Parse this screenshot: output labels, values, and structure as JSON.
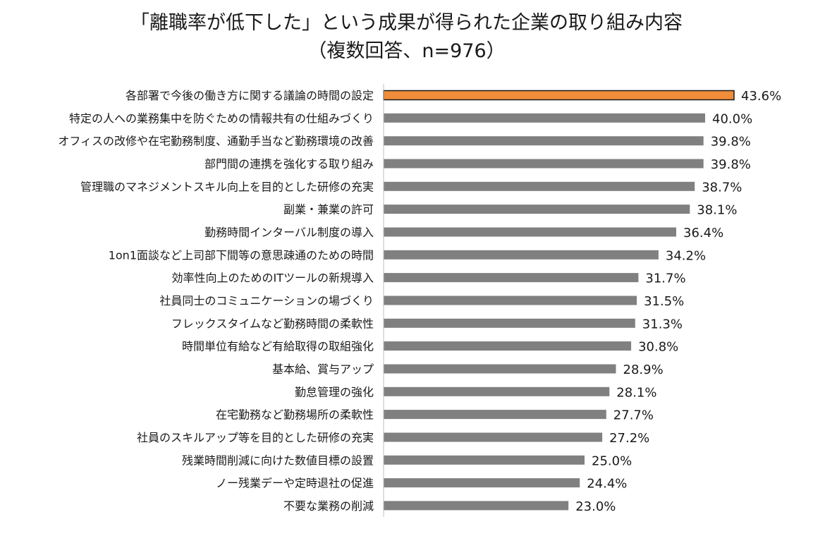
{
  "chart_data": {
    "type": "bar",
    "orientation": "horizontal",
    "title": "「離職率が低下した」という成果が得られた企業の取り組み内容",
    "subtitle": "（複数回答、n=976）",
    "xlabel": "",
    "ylabel": "",
    "unit": "%",
    "xlim": [
      0,
      50
    ],
    "grid": false,
    "legend": "none",
    "categories": [
      "各部署で今後の働き方に関する議論の時間の設定",
      "特定の人への業務集中を防ぐための情報共有の仕組みづくり",
      "オフィスの改修や在宅勤務制度、通勤手当など勤務環境の改善",
      "部門間の連携を強化する取り組み",
      "管理職のマネジメントスキル向上を目的とした研修の充実",
      "副業・兼業の許可",
      "勤務時間インターバル制度の導入",
      "1on1面談など上司部下間等の意思疎通のための時間",
      "効率性向上のためのITツールの新規導入",
      "社員同士のコミュニケーションの場づくり",
      "フレックスタイムなど勤務時間の柔軟性",
      "時間単位有給など有給取得の取組強化",
      "基本給、賞与アップ",
      "勤怠管理の強化",
      "在宅勤務など勤務場所の柔軟性",
      "社員のスキルアップ等を目的とした研修の充実",
      "残業時間削減に向けた数値目標の設置",
      "ノー残業デーや定時退社の促進",
      "不要な業務の削減"
    ],
    "values": [
      43.6,
      40.0,
      39.8,
      39.8,
      38.7,
      38.1,
      36.4,
      34.2,
      31.7,
      31.5,
      31.3,
      30.8,
      28.9,
      28.1,
      27.7,
      27.2,
      25.0,
      24.4,
      23.0
    ],
    "value_labels": [
      "43.6%",
      "40.0%",
      "39.8%",
      "39.8%",
      "38.7%",
      "38.1%",
      "36.4%",
      "34.2%",
      "31.7%",
      "31.5%",
      "31.3%",
      "30.8%",
      "28.9%",
      "28.1%",
      "27.7%",
      "27.2%",
      "25.0%",
      "24.4%",
      "23.0%"
    ],
    "highlight_index": 0,
    "colors": {
      "highlight": "#f08c3a",
      "highlight_border": "#1a1a1a",
      "bar": "#808080",
      "axis": "#bfbfbf"
    }
  }
}
